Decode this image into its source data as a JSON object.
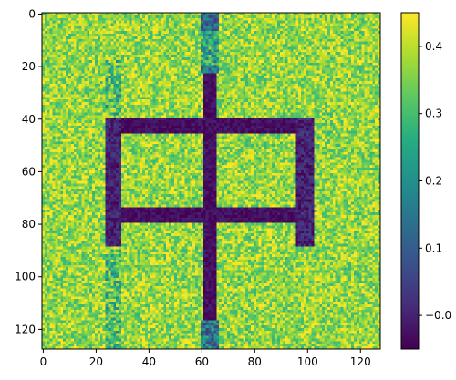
{
  "chart_data": {
    "type": "heatmap",
    "title": "",
    "xlabel": "",
    "ylabel": "",
    "grid_size": [
      128,
      128
    ],
    "xlim": [
      -0.5,
      127.5
    ],
    "ylim": [
      127.5,
      -0.5
    ],
    "x_ticks": [
      0,
      20,
      40,
      60,
      80,
      100,
      120
    ],
    "y_ticks": [
      0,
      20,
      40,
      60,
      80,
      100,
      120
    ],
    "colormap": "viridis",
    "color_range": [
      -0.05,
      0.45
    ],
    "colorbar_ticks": [
      -0.0,
      0.1,
      0.2,
      0.3,
      0.4
    ],
    "colorbar_tick_labels": [
      "−0.0",
      "0.1",
      "0.2",
      "0.3",
      "0.4"
    ],
    "background_level": 0.37,
    "background_noise": 0.09,
    "noise_seed": 12345,
    "shapes": [
      {
        "kind": "rect",
        "x": [
          60,
          67
        ],
        "y": [
          0,
          7
        ],
        "value": 0.12,
        "noise": 0.09
      },
      {
        "kind": "rect",
        "x": [
          60,
          67
        ],
        "y": [
          7,
          20
        ],
        "value": 0.25,
        "noise": 0.13
      },
      {
        "kind": "rect",
        "x": [
          60,
          67
        ],
        "y": [
          20,
          23
        ],
        "value": 0.15,
        "noise": 0.1
      },
      {
        "kind": "rect",
        "x": [
          61,
          66
        ],
        "y": [
          23,
          117
        ],
        "value": -0.03,
        "noise": 0.03
      },
      {
        "kind": "rect",
        "x": [
          60,
          67
        ],
        "y": [
          117,
          128
        ],
        "value": 0.15,
        "noise": 0.12
      },
      {
        "kind": "rect",
        "x": [
          24,
          30
        ],
        "y": [
          18,
          40
        ],
        "value": 0.3,
        "noise": 0.13
      },
      {
        "kind": "rect",
        "x": [
          24,
          30
        ],
        "y": [
          90,
          128
        ],
        "value": 0.3,
        "noise": 0.13
      },
      {
        "kind": "rect",
        "x": [
          24,
          103
        ],
        "y": [
          40,
          46
        ],
        "value": -0.03,
        "noise": 0.03
      },
      {
        "kind": "rect",
        "x": [
          24,
          103
        ],
        "y": [
          74,
          80
        ],
        "value": -0.03,
        "noise": 0.03
      },
      {
        "kind": "rect",
        "x": [
          24,
          30
        ],
        "y": [
          40,
          89
        ],
        "value": 0.0,
        "noise": 0.05
      },
      {
        "kind": "rect",
        "x": [
          96,
          103
        ],
        "y": [
          40,
          89
        ],
        "value": 0.0,
        "noise": 0.05
      }
    ]
  }
}
